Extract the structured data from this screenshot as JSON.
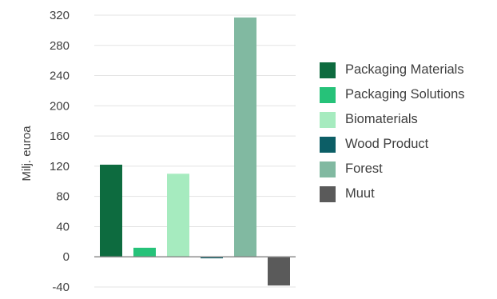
{
  "chart_data": {
    "type": "bar",
    "title": "",
    "xlabel": "",
    "ylabel": "Milj. euroa",
    "ylim": [
      -40,
      320
    ],
    "yticks": [
      320,
      280,
      240,
      200,
      160,
      120,
      80,
      40,
      0,
      -40
    ],
    "grid": true,
    "legend_position": "right",
    "categories": [
      "Packaging Materials",
      "Packaging Solutions",
      "Biomaterials",
      "Wood Product",
      "Forest",
      "Muut"
    ],
    "values": [
      122,
      12,
      110,
      -2,
      317,
      -38
    ],
    "colors": [
      "#0d6b3f",
      "#26c279",
      "#a6ebbf",
      "#0c5e66",
      "#81b9a1",
      "#5a5a5a"
    ]
  }
}
